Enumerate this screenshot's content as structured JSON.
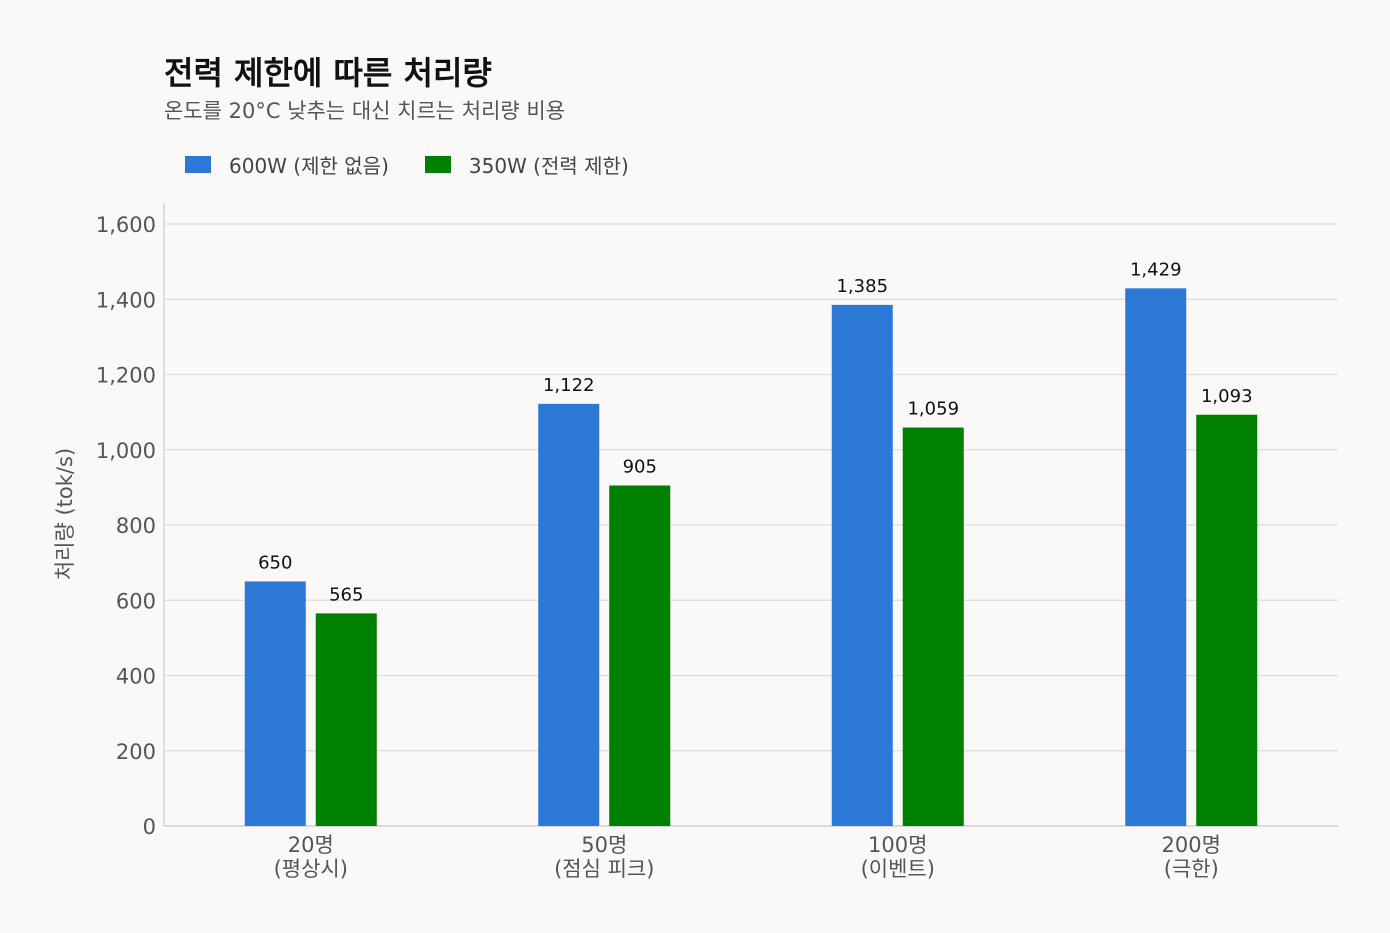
{
  "chart_data": {
    "type": "bar",
    "title": "전력 제한에 따른 처리량",
    "subtitle": "온도를 20°C 낮추는 대신 치르는 처리량 비용",
    "xlabel": "",
    "ylabel": "처리량 (tok/s)",
    "ylim": [
      0,
      1600
    ],
    "yticks": [
      0,
      200,
      400,
      600,
      800,
      1000,
      1200,
      1400,
      1600
    ],
    "ytick_labels": [
      "0",
      "200",
      "400",
      "600",
      "800",
      "1,000",
      "1,200",
      "1,400",
      "1,600"
    ],
    "grid": true,
    "legend_position": "top-left",
    "categories": [
      [
        "20명",
        "(평상시)"
      ],
      [
        "50명",
        "(점심 피크)"
      ],
      [
        "100명",
        "(이벤트)"
      ],
      [
        "200명",
        "(극한)"
      ]
    ],
    "series": [
      {
        "name": "600W (제한 없음)",
        "color": "#2b78d6",
        "values": [
          650,
          1122,
          1385,
          1429
        ],
        "labels": [
          "650",
          "1,122",
          "1,385",
          "1,429"
        ]
      },
      {
        "name": "350W (전력 제한)",
        "color": "#008000",
        "values": [
          565,
          905,
          1059,
          1093
        ],
        "labels": [
          "565",
          "905",
          "1,059",
          "1,093"
        ]
      }
    ]
  }
}
